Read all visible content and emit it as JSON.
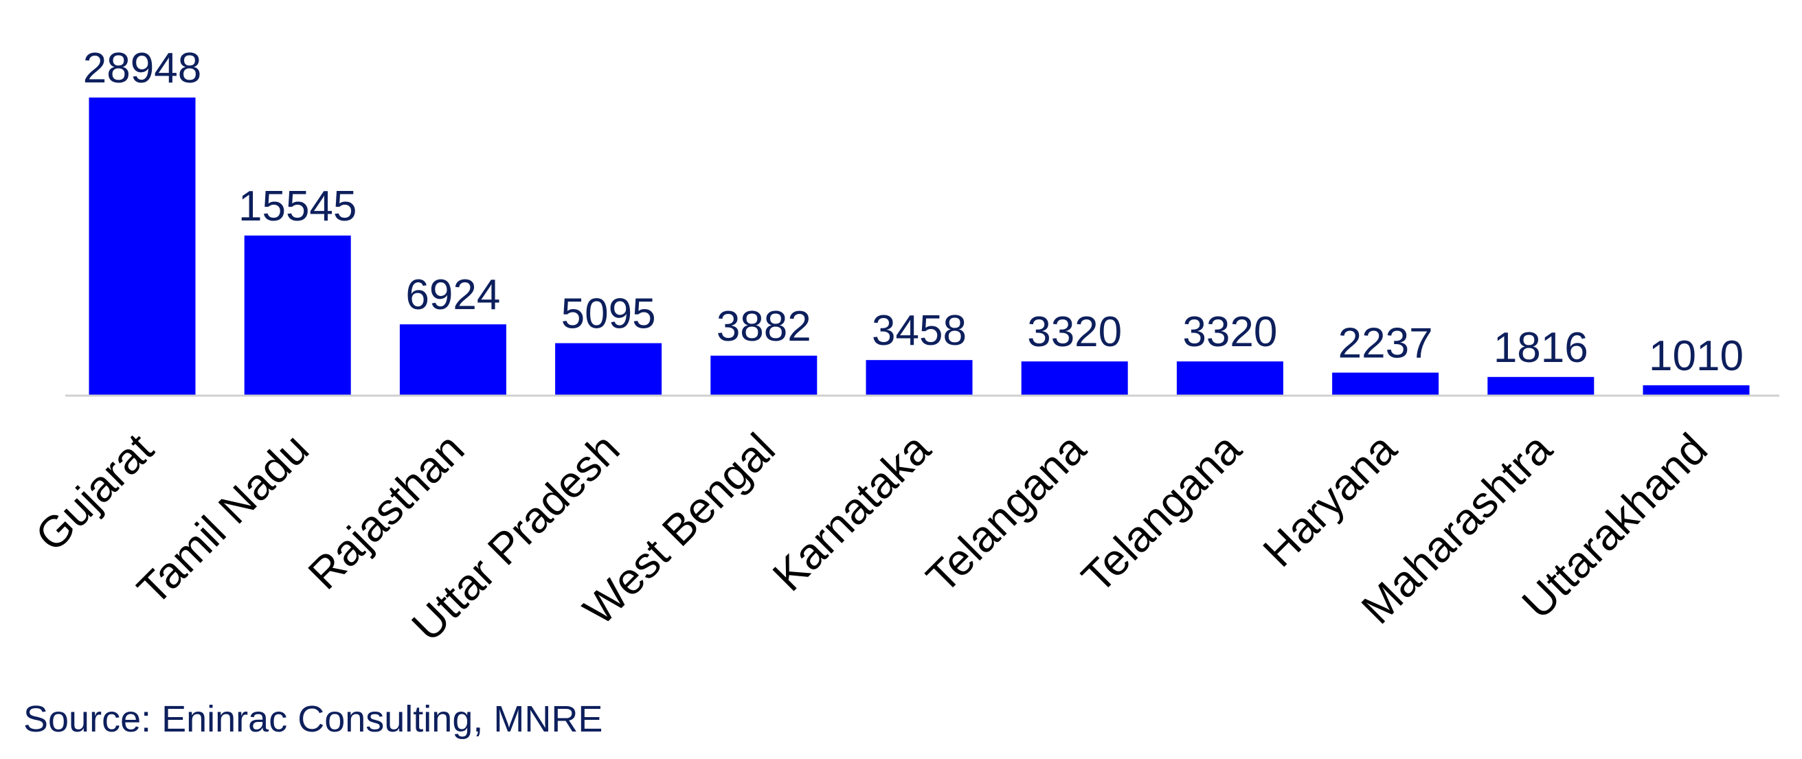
{
  "chart_data": {
    "type": "bar",
    "categories": [
      "Gujarat",
      "Tamil Nadu",
      "Rajasthan",
      "Uttar Pradesh",
      "West Bengal",
      "Karnataka",
      "Telangana",
      "Telangana",
      "Haryana",
      "Maharashtra",
      "Uttarakhand"
    ],
    "values": [
      28948,
      15545,
      6924,
      5095,
      3882,
      3458,
      3320,
      3320,
      2237,
      1816,
      1010
    ],
    "data_labels": [
      "28948",
      "15545",
      "6924",
      "5095",
      "3882",
      "3458",
      "3320",
      "3320",
      "2237",
      "1816",
      "1010"
    ],
    "ylim": [
      0,
      28948
    ],
    "grid": false,
    "legend": "none",
    "bar_color": "#0000FF",
    "label_color": "#0D1F5C",
    "axis_color": "#D0D0D0",
    "category_label_color": "#000000"
  },
  "source": "Source: Eninrac Consulting, MNRE"
}
